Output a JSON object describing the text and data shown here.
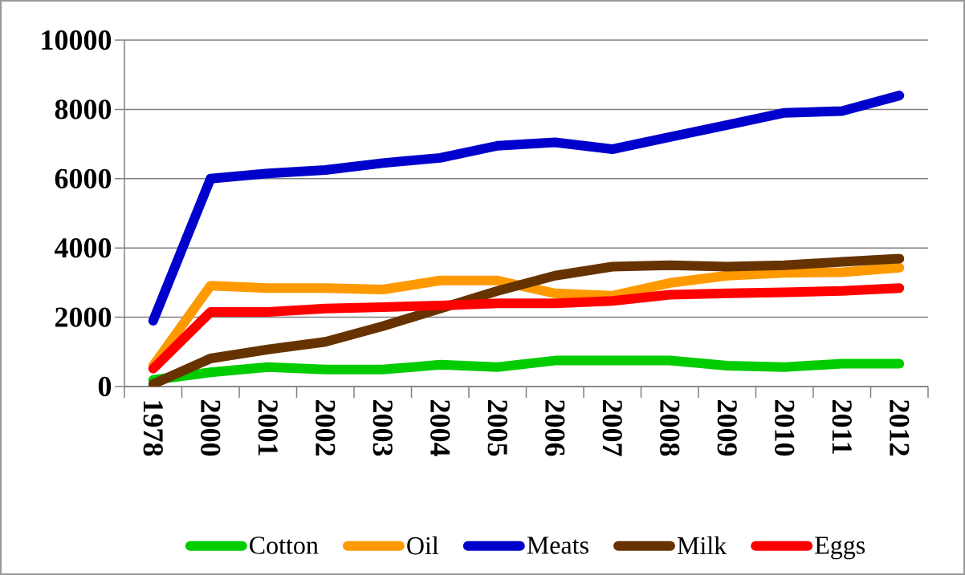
{
  "chart_data": {
    "type": "line",
    "categories": [
      "1978",
      "2000",
      "2001",
      "2002",
      "2003",
      "2004",
      "2005",
      "2006",
      "2007",
      "2008",
      "2009",
      "2010",
      "2011",
      "2012"
    ],
    "ylim": [
      0,
      10000
    ],
    "yticks": [
      0,
      2000,
      4000,
      6000,
      8000,
      10000
    ],
    "grid": "y",
    "legend": "bottom",
    "marker": "none",
    "line_style": "solid",
    "series": [
      {
        "name": "Cotton",
        "color": "#00cc00",
        "values": [
          190,
          410,
          560,
          490,
          490,
          630,
          560,
          750,
          750,
          750,
          600,
          560,
          660,
          660
        ]
      },
      {
        "name": "Oil",
        "color": "#ff9900",
        "values": [
          600,
          2910,
          2840,
          2840,
          2800,
          3060,
          3060,
          2690,
          2620,
          2990,
          3200,
          3280,
          3300,
          3430
        ]
      },
      {
        "name": "Meats",
        "color": "#0000cc",
        "values": [
          1900,
          6000,
          6150,
          6250,
          6450,
          6600,
          6950,
          7050,
          6850,
          7200,
          7550,
          7900,
          7950,
          8400
        ]
      },
      {
        "name": "Milk",
        "color": "#663300",
        "values": [
          70,
          810,
          1070,
          1290,
          1740,
          2250,
          2760,
          3200,
          3460,
          3500,
          3460,
          3500,
          3600,
          3690
        ]
      },
      {
        "name": "Eggs",
        "color": "#ff0000",
        "values": [
          515,
          2150,
          2150,
          2250,
          2290,
          2340,
          2400,
          2400,
          2470,
          2650,
          2690,
          2720,
          2760,
          2840
        ]
      }
    ]
  }
}
